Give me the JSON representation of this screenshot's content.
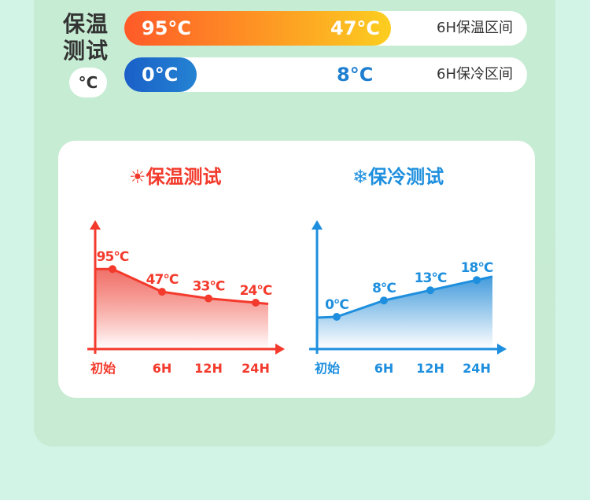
{
  "summary": {
    "title": "保温测试",
    "unit": "°C",
    "rows": [
      {
        "start": "95°C",
        "end": "47°C",
        "caption": "6H保温区间"
      },
      {
        "start": "0°C",
        "end": "8°C",
        "caption": "6H保冷区间"
      }
    ]
  },
  "colors": {
    "warm": "#f33a2c",
    "cold": "#1e8fde",
    "text": "#333333"
  },
  "chart_data": [
    {
      "type": "area",
      "title": "保温测试",
      "icon": "sun-icon",
      "categories": [
        "初始",
        "6H",
        "12H",
        "24H"
      ],
      "values": [
        95,
        47,
        33,
        24
      ],
      "labels": [
        "95°C",
        "47°C",
        "33°C",
        "24°C"
      ],
      "grid": false
    },
    {
      "type": "area",
      "title": "保冷测试",
      "icon": "snowflake-icon",
      "categories": [
        "初始",
        "6H",
        "12H",
        "24H"
      ],
      "values": [
        0,
        8,
        13,
        18
      ],
      "labels": [
        "0°C",
        "8°C",
        "13°C",
        "18°C"
      ],
      "grid": false
    }
  ]
}
